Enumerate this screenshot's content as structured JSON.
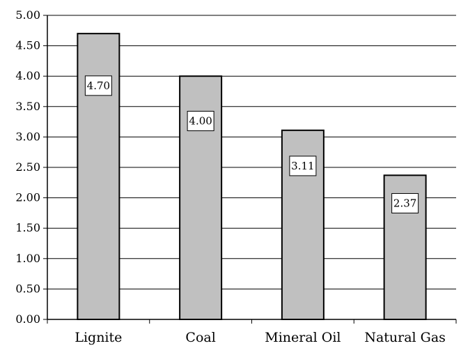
{
  "chart_data": {
    "type": "bar",
    "title": "",
    "xlabel": "",
    "ylabel": "",
    "categories": [
      "Lignite",
      "Coal",
      "Mineral Oil",
      "Natural Gas"
    ],
    "values": [
      4.7,
      4.0,
      3.11,
      2.37
    ],
    "data_labels": [
      "4.70",
      "4.00",
      "3.11",
      "2.37"
    ],
    "ylim": [
      0,
      5
    ],
    "y_ticks": [
      "0.00",
      "0.50",
      "1.00",
      "1.50",
      "2.00",
      "2.50",
      "3.00",
      "3.50",
      "4.00",
      "4.50",
      "5.00"
    ],
    "grid": true,
    "legend": "none",
    "bar_color": "#c0c0c0",
    "bar_edge_color": "#000000"
  }
}
